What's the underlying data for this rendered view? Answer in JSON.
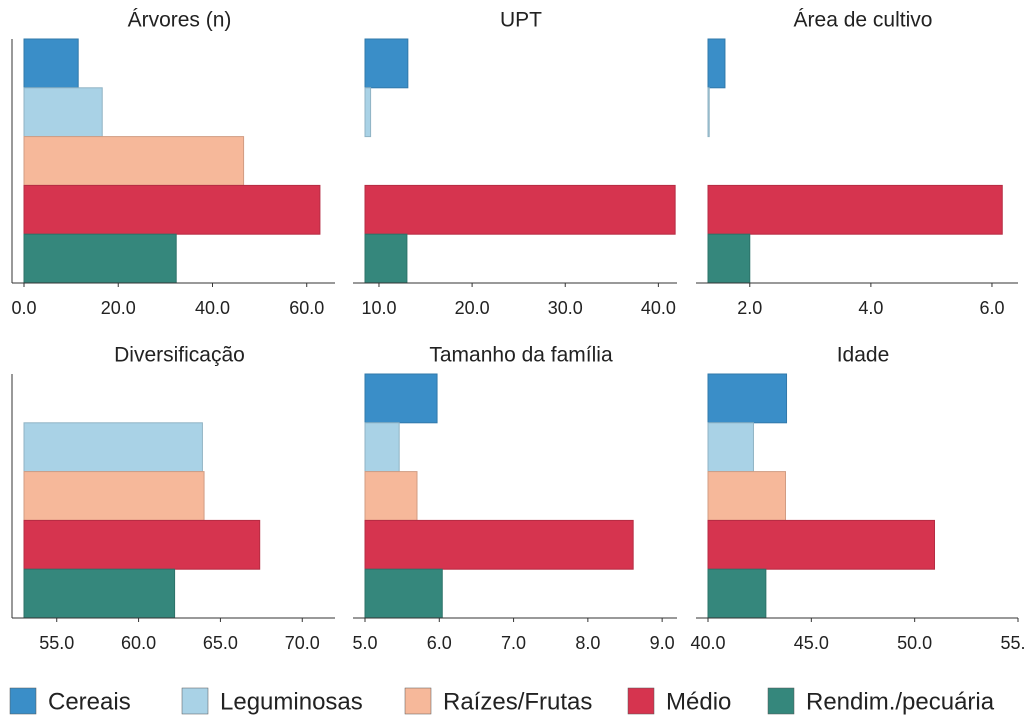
{
  "chart_data": {
    "type": "bar",
    "series": [
      {
        "name": "Cereais",
        "color": "#3a8ec8"
      },
      {
        "name": "Leguminosas",
        "color": "#a9d2e6"
      },
      {
        "name": "Raízes/Frutas",
        "color": "#f6b89a"
      },
      {
        "name": "Médio",
        "color": "#d6344f"
      },
      {
        "name": "Rendim./pecuária",
        "color": "#35877c"
      }
    ],
    "panels": [
      {
        "title": "Árvores (n)",
        "values": [
          11.5,
          16.6,
          46.6,
          62.8,
          32.3
        ],
        "xlim": [
          0,
          66
        ],
        "xticks": [
          {
            "value": 0,
            "label": "0.0"
          },
          {
            "value": 20,
            "label": "20.0"
          },
          {
            "value": 40,
            "label": "40.0"
          },
          {
            "value": 60,
            "label": "60.0"
          }
        ]
      },
      {
        "title": "UPT",
        "values": [
          13.1,
          9.1,
          null,
          41.8,
          13.0
        ],
        "xlim": [
          8.5,
          42
        ],
        "xticks": [
          {
            "value": 10,
            "label": "10.0"
          },
          {
            "value": 20,
            "label": "20.0"
          },
          {
            "value": 30,
            "label": "30.0"
          },
          {
            "value": 40,
            "label": "40.0"
          }
        ]
      },
      {
        "title": "Área de cultivo",
        "values": [
          1.59,
          1.33,
          null,
          6.17,
          2.0
        ],
        "xlim": [
          1.31,
          6.43
        ],
        "xticks": [
          {
            "value": 2,
            "label": "2.0"
          },
          {
            "value": 4,
            "label": "4.0"
          },
          {
            "value": 6,
            "label": "6.0"
          }
        ]
      },
      {
        "title": "Diversificação",
        "values": [
          null,
          63.9,
          64.0,
          67.4,
          62.2
        ],
        "xlim": [
          53,
          72
        ],
        "xticks": [
          {
            "value": 55,
            "label": "55.0"
          },
          {
            "value": 60,
            "label": "60.0"
          },
          {
            "value": 65,
            "label": "65.0"
          },
          {
            "value": 70,
            "label": "70.0"
          }
        ]
      },
      {
        "title": "Tamanho da família",
        "values": [
          5.97,
          5.46,
          5.7,
          8.61,
          6.04
        ],
        "xlim": [
          5,
          9.2
        ],
        "xticks": [
          {
            "value": 5,
            "label": "5.0"
          },
          {
            "value": 6,
            "label": "6.0"
          },
          {
            "value": 7,
            "label": "7.0"
          },
          {
            "value": 8,
            "label": "8.0"
          },
          {
            "value": 9,
            "label": "9.0"
          }
        ]
      },
      {
        "title": "Idade",
        "values": [
          43.8,
          42.2,
          43.75,
          50.96,
          42.8
        ],
        "xlim": [
          40,
          55
        ],
        "xticks": [
          {
            "value": 40,
            "label": "40.0"
          },
          {
            "value": 45,
            "label": "45.0"
          },
          {
            "value": 50,
            "label": "50.0"
          },
          {
            "value": 55,
            "label": "55.0"
          }
        ]
      }
    ]
  }
}
